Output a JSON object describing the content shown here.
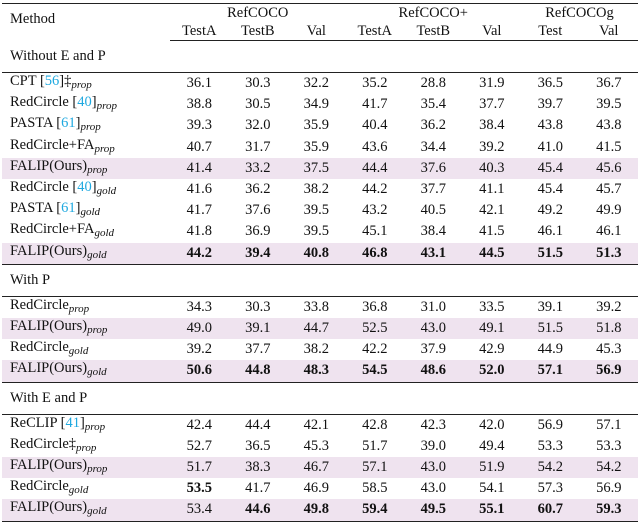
{
  "header": {
    "method": "Method",
    "groups": [
      {
        "name": "RefCOCO",
        "columns": [
          "TestA",
          "TestB",
          "Val"
        ]
      },
      {
        "name": "RefCOCO+",
        "columns": [
          "TestA",
          "TestB",
          "Val"
        ]
      },
      {
        "name": "RefCOCOg",
        "columns": [
          "Test",
          "Val"
        ]
      }
    ]
  },
  "sections": [
    {
      "title": "Without E and P",
      "rows": [
        {
          "method": [
            {
              "t": "CPT ["
            },
            {
              "t": "56",
              "style": "ref"
            },
            {
              "t": "]‡"
            },
            {
              "t": "prop",
              "style": "sub"
            }
          ],
          "values": [
            "36.1",
            "30.3",
            "32.2",
            "35.2",
            "28.8",
            "31.9",
            "36.5",
            "36.7"
          ],
          "bold": [],
          "highlight": false
        },
        {
          "method": [
            {
              "t": "RedCircle ["
            },
            {
              "t": "40",
              "style": "ref"
            },
            {
              "t": "]"
            },
            {
              "t": "prop",
              "style": "sub"
            }
          ],
          "values": [
            "38.8",
            "30.5",
            "34.9",
            "41.7",
            "35.4",
            "37.7",
            "39.7",
            "39.5"
          ],
          "bold": [],
          "highlight": false
        },
        {
          "method": [
            {
              "t": "PASTA ["
            },
            {
              "t": "61",
              "style": "ref"
            },
            {
              "t": "]"
            },
            {
              "t": "prop",
              "style": "sub"
            }
          ],
          "values": [
            "39.3",
            "32.0",
            "35.9",
            "40.4",
            "36.2",
            "38.4",
            "43.8",
            "43.8"
          ],
          "bold": [],
          "highlight": false
        },
        {
          "method": [
            {
              "t": "RedCircle+FA"
            },
            {
              "t": "prop",
              "style": "sub"
            }
          ],
          "values": [
            "40.7",
            "31.7",
            "35.9",
            "43.6",
            "34.4",
            "39.2",
            "41.0",
            "41.5"
          ],
          "bold": [],
          "highlight": false
        },
        {
          "method": [
            {
              "t": "FALIP(Ours)"
            },
            {
              "t": "prop",
              "style": "sub"
            }
          ],
          "values": [
            "41.4",
            "33.2",
            "37.5",
            "44.4",
            "37.6",
            "40.3",
            "45.4",
            "45.6"
          ],
          "bold": [],
          "highlight": true
        },
        {
          "method": [
            {
              "t": "RedCircle ["
            },
            {
              "t": "40",
              "style": "ref"
            },
            {
              "t": "]"
            },
            {
              "t": "gold",
              "style": "sub"
            }
          ],
          "values": [
            "41.6",
            "36.2",
            "38.2",
            "44.2",
            "37.7",
            "41.1",
            "45.4",
            "45.7"
          ],
          "bold": [],
          "highlight": false
        },
        {
          "method": [
            {
              "t": "PASTA ["
            },
            {
              "t": "61",
              "style": "ref"
            },
            {
              "t": "]"
            },
            {
              "t": "gold",
              "style": "sub"
            }
          ],
          "values": [
            "41.7",
            "37.6",
            "39.5",
            "43.2",
            "40.5",
            "42.1",
            "49.2",
            "49.9"
          ],
          "bold": [],
          "highlight": false
        },
        {
          "method": [
            {
              "t": "RedCircle+FA"
            },
            {
              "t": "gold",
              "style": "sub"
            }
          ],
          "values": [
            "41.8",
            "36.9",
            "39.5",
            "45.1",
            "38.4",
            "41.5",
            "46.1",
            "46.1"
          ],
          "bold": [],
          "highlight": false
        },
        {
          "method": [
            {
              "t": "FALIP(Ours)"
            },
            {
              "t": "gold",
              "style": "sub"
            }
          ],
          "values": [
            "44.2",
            "39.4",
            "40.8",
            "46.8",
            "43.1",
            "44.5",
            "51.5",
            "51.3"
          ],
          "bold": [
            0,
            1,
            2,
            3,
            4,
            5,
            6,
            7
          ],
          "highlight": true
        }
      ]
    },
    {
      "title": "With P",
      "rows": [
        {
          "method": [
            {
              "t": "RedCircle"
            },
            {
              "t": "prop",
              "style": "sub"
            }
          ],
          "values": [
            "34.3",
            "30.3",
            "33.8",
            "36.8",
            "31.0",
            "33.5",
            "39.1",
            "39.2"
          ],
          "bold": [],
          "highlight": false
        },
        {
          "method": [
            {
              "t": "FALIP(Ours)"
            },
            {
              "t": "prop",
              "style": "sub"
            }
          ],
          "values": [
            "49.0",
            "39.1",
            "44.7",
            "52.5",
            "43.0",
            "49.1",
            "51.5",
            "51.8"
          ],
          "bold": [],
          "highlight": true
        },
        {
          "method": [
            {
              "t": "RedCircle"
            },
            {
              "t": "gold",
              "style": "sub"
            }
          ],
          "values": [
            "39.2",
            "37.7",
            "38.2",
            "42.2",
            "37.9",
            "42.9",
            "44.9",
            "45.3"
          ],
          "bold": [],
          "highlight": false
        },
        {
          "method": [
            {
              "t": "FALIP(Ours)"
            },
            {
              "t": "gold",
              "style": "sub"
            }
          ],
          "values": [
            "50.6",
            "44.8",
            "48.3",
            "54.5",
            "48.6",
            "52.0",
            "57.1",
            "56.9"
          ],
          "bold": [
            0,
            1,
            2,
            3,
            4,
            5,
            6,
            7
          ],
          "highlight": true
        }
      ]
    },
    {
      "title": "With E and P",
      "rows": [
        {
          "method": [
            {
              "t": "ReCLIP ["
            },
            {
              "t": "41",
              "style": "ref"
            },
            {
              "t": "]"
            },
            {
              "t": "prop",
              "style": "sub"
            }
          ],
          "values": [
            "42.4",
            "44.4",
            "42.1",
            "42.8",
            "42.3",
            "42.0",
            "56.9",
            "57.1"
          ],
          "bold": [],
          "highlight": false
        },
        {
          "method": [
            {
              "t": "RedCircle‡"
            },
            {
              "t": "prop",
              "style": "sub"
            }
          ],
          "values": [
            "52.7",
            "36.5",
            "45.3",
            "51.7",
            "39.0",
            "49.4",
            "53.3",
            "53.3"
          ],
          "bold": [],
          "highlight": false
        },
        {
          "method": [
            {
              "t": "FALIP(Ours)"
            },
            {
              "t": "prop",
              "style": "sub"
            }
          ],
          "values": [
            "51.7",
            "38.3",
            "46.7",
            "57.1",
            "43.0",
            "51.9",
            "54.2",
            "54.2"
          ],
          "bold": [],
          "highlight": true
        },
        {
          "method": [
            {
              "t": "RedCircle"
            },
            {
              "t": "gold",
              "style": "sub"
            }
          ],
          "values": [
            "53.5",
            "41.7",
            "46.9",
            "58.5",
            "43.0",
            "54.1",
            "57.3",
            "56.9"
          ],
          "bold": [
            0
          ],
          "highlight": false
        },
        {
          "method": [
            {
              "t": "FALIP(Ours)"
            },
            {
              "t": "gold",
              "style": "sub"
            }
          ],
          "values": [
            "53.4",
            "44.6",
            "49.8",
            "59.4",
            "49.5",
            "55.1",
            "60.7",
            "59.3"
          ],
          "bold": [
            1,
            2,
            3,
            4,
            5,
            6,
            7
          ],
          "highlight": true
        }
      ]
    }
  ]
}
